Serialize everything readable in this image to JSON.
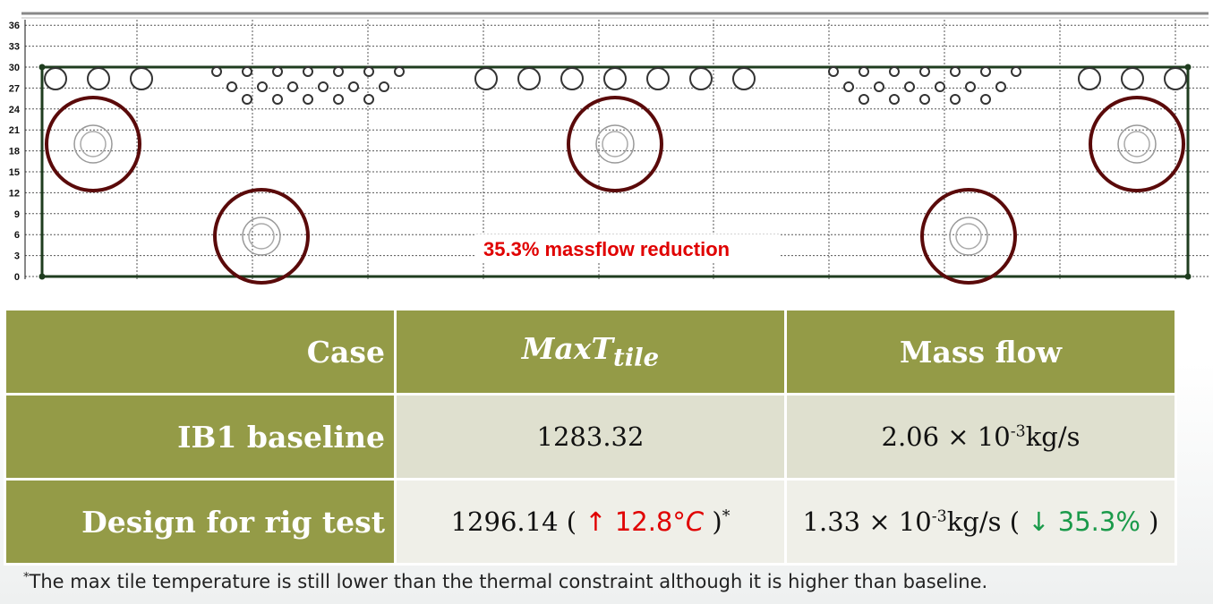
{
  "diagram": {
    "y_ticks": [
      "0",
      "3",
      "6",
      "9",
      "12",
      "15",
      "18",
      "21",
      "24",
      "27",
      "30",
      "33",
      "36"
    ],
    "annotation": "35.3% massflow reduction",
    "colors": {
      "big_circle": "#5a0a0a",
      "border": "#1f3d1f",
      "hole": "#333333",
      "grid": "#555555",
      "annotation": "#e00000"
    }
  },
  "table": {
    "headers": {
      "case": "Case",
      "maxt_main": "MaxT",
      "maxt_sub": "tile",
      "mass_flow": "Mass flow"
    },
    "rows": [
      {
        "case": "IB1 baseline",
        "maxt": "1283.32",
        "mass_flow": "2.06 × 10",
        "mass_flow_exp": "-3",
        "mass_flow_unit": "kg/s"
      },
      {
        "case": "Design for rig test",
        "maxt": "1296.14 ( ",
        "maxt_delta": "↑ 12.8°",
        "maxt_delta_unit": "C",
        "maxt_close": " )",
        "maxt_mark": "*",
        "mass_flow": "1.33 × 10",
        "mass_flow_exp": "-3",
        "mass_flow_unit": "kg/s ( ",
        "mass_flow_delta": "↓ 35.3%",
        "mass_flow_close": " )"
      }
    ]
  },
  "footnote": {
    "mark": "*",
    "text": "The max tile temperature is still lower than the thermal constraint although it is higher than baseline."
  }
}
